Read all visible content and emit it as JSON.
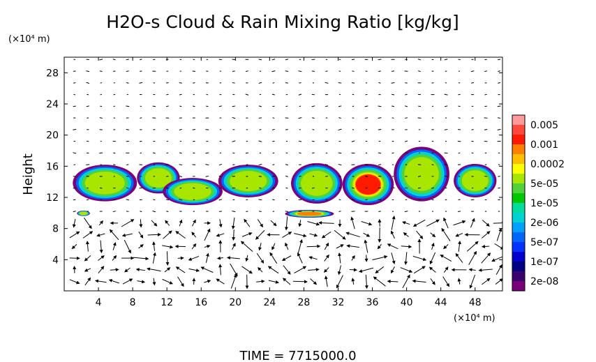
{
  "chart_data": {
    "type": "heatmap",
    "title": "H2O-s Cloud & Rain Mixing Ratio [kg/kg]",
    "ylabel": "Height",
    "xlabel": "",
    "y_unit_label": "(×10⁴ m)",
    "x_unit_label": "(×10⁴ m)",
    "xlim": [
      0,
      51.2
    ],
    "ylim": [
      0,
      30
    ],
    "xticks": [
      4,
      8,
      12,
      16,
      20,
      24,
      28,
      32,
      36,
      40,
      44,
      48
    ],
    "yticks": [
      4,
      8,
      12,
      16,
      20,
      24,
      28
    ],
    "grid": false,
    "legend": "right",
    "colorbar": {
      "labels": [
        "0.005",
        "0.001",
        "0.0002",
        "5e-05",
        "1e-05",
        "2e-06",
        "5e-07",
        "1e-07",
        "2e-08"
      ],
      "colors": [
        "#ff9b9b",
        "#ff4a3c",
        "#ff1a00",
        "#ff8000",
        "#ffbf00",
        "#ffff00",
        "#a8e600",
        "#50d23c",
        "#00c800",
        "#00dc9c",
        "#00d2d2",
        "#00a0ff",
        "#0066ff",
        "#0033ff",
        "#0000cc",
        "#000080",
        "#3c006e",
        "#780078"
      ]
    },
    "cloud_regions": [
      {
        "x": [
          1.0,
          8.5
        ],
        "y": [
          11.5,
          16.2
        ],
        "level": 4
      },
      {
        "x": [
          8.5,
          13.5
        ],
        "y": [
          12.5,
          16.5
        ],
        "level": 3
      },
      {
        "x": [
          11.5,
          18.5
        ],
        "y": [
          11.0,
          14.5
        ],
        "level": 4
      },
      {
        "x": [
          18.0,
          25.0
        ],
        "y": [
          12.0,
          16.2
        ],
        "level": 4
      },
      {
        "x": [
          26.5,
          32.5
        ],
        "y": [
          11.2,
          16.4
        ],
        "level": 4
      },
      {
        "x": [
          32.5,
          38.5
        ],
        "y": [
          11.0,
          16.3
        ],
        "level": 1
      },
      {
        "x": [
          38.5,
          45.0
        ],
        "y": [
          11.5,
          18.5
        ],
        "level": 4
      },
      {
        "x": [
          45.5,
          50.5
        ],
        "y": [
          12.0,
          16.3
        ],
        "level": 4
      },
      {
        "x": [
          1.5,
          3.0
        ],
        "y": [
          9.6,
          10.3
        ],
        "level": 4
      },
      {
        "x": [
          25.8,
          31.5
        ],
        "y": [
          9.4,
          10.4
        ],
        "level": 2
      }
    ],
    "wind_vectors": "arrow field drawn over whole domain; strong circulations below 8"
  },
  "footer": {
    "time_label": "TIME  =  7715000.0"
  }
}
